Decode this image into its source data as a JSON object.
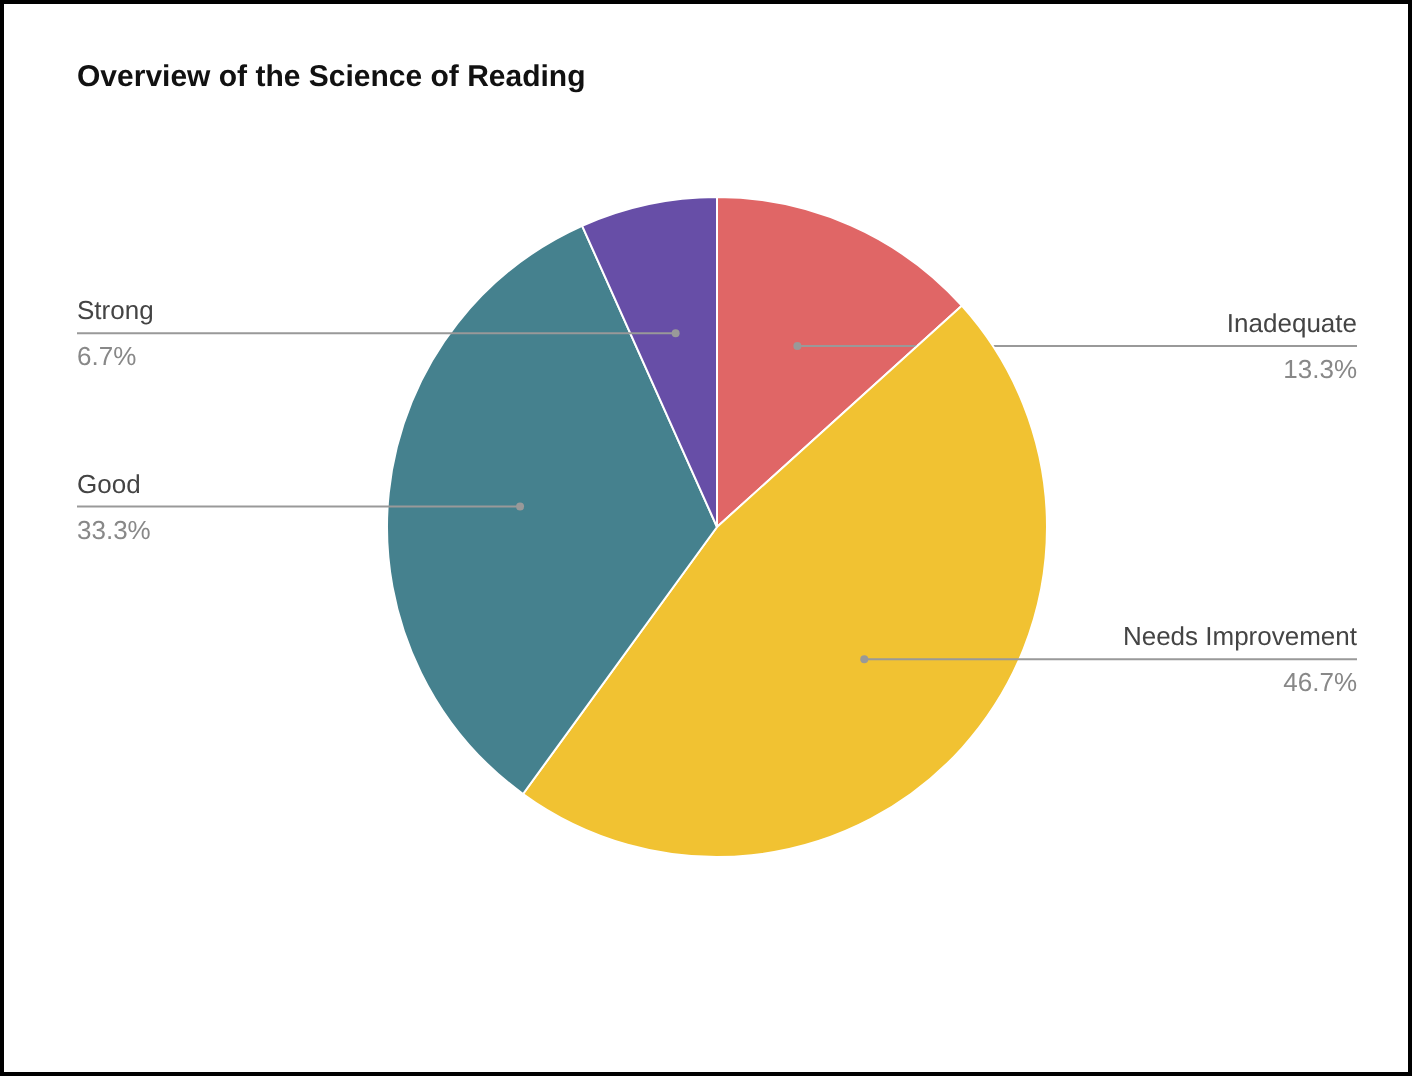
{
  "chart_data": {
    "type": "pie",
    "title": "Overview of the Science of Reading",
    "categories": [
      "Inadequate",
      "Needs Improvement",
      "Good",
      "Strong"
    ],
    "values": [
      13.3,
      46.7,
      33.3,
      6.7
    ],
    "colors": [
      "#e06666",
      "#f1c232",
      "#45818e",
      "#674ea7"
    ],
    "value_labels": [
      "13.3%",
      "46.7%",
      "33.3%",
      "6.7%"
    ]
  }
}
